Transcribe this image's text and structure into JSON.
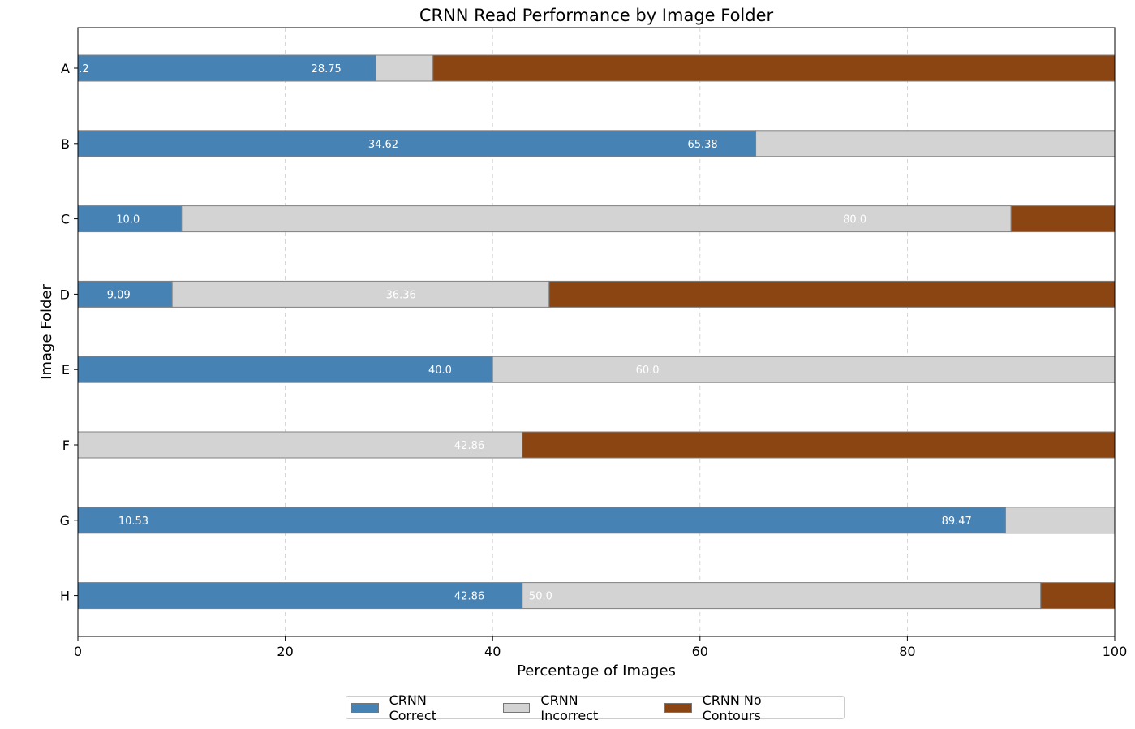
{
  "chart_data": {
    "type": "bar",
    "orientation": "horizontal",
    "stacked": true,
    "title": "CRNN Read Performance by Image Folder",
    "xlabel": "Percentage of Images",
    "ylabel": "Image Folder",
    "xlim": [
      0,
      100
    ],
    "xticks": [
      "0",
      "20",
      "40",
      "60",
      "80",
      "100"
    ],
    "grid": "x-dashed",
    "legend_position": "bottom-center",
    "categories": [
      "A",
      "B",
      "C",
      "D",
      "E",
      "F",
      "G",
      "H"
    ],
    "series": [
      {
        "name": "CRNN Correct",
        "color": "#4682b4",
        "values": [
          28.75,
          65.38,
          10.0,
          9.09,
          40.0,
          0,
          89.47,
          42.86
        ]
      },
      {
        "name": "CRNN Incorrect",
        "color": "#d3d3d3",
        "values": [
          5.5,
          34.62,
          80.0,
          36.36,
          60.0,
          42.86,
          10.53,
          50.0
        ]
      },
      {
        "name": "CRNN No Contours",
        "color": "#8b4513",
        "values": [
          65.75,
          0,
          10.0,
          54.55,
          0,
          57.14,
          0,
          7.14
        ]
      }
    ],
    "data_labels": [
      {
        "category": "A",
        "text": ".2",
        "x": 0.1
      },
      {
        "category": "A",
        "text": "28.75",
        "x": 22.5
      },
      {
        "category": "B",
        "text": "34.62",
        "x": 28.0
      },
      {
        "category": "B",
        "text": "65.38",
        "x": 58.8
      },
      {
        "category": "C",
        "text": "10.0",
        "x": 3.7
      },
      {
        "category": "C",
        "text": "80.0",
        "x": 73.8
      },
      {
        "category": "D",
        "text": "9.09",
        "x": 2.8
      },
      {
        "category": "D",
        "text": "36.36",
        "x": 29.7
      },
      {
        "category": "E",
        "text": "40.0",
        "x": 33.8
      },
      {
        "category": "E",
        "text": "60.0",
        "x": 53.8
      },
      {
        "category": "F",
        "text": "42.86",
        "x": 36.3
      },
      {
        "category": "G",
        "text": "10.53",
        "x": 3.9
      },
      {
        "category": "G",
        "text": "89.47",
        "x": 83.3
      },
      {
        "category": "H",
        "text": "42.86",
        "x": 36.3
      },
      {
        "category": "H",
        "text": "50.0",
        "x": 43.5
      }
    ]
  }
}
